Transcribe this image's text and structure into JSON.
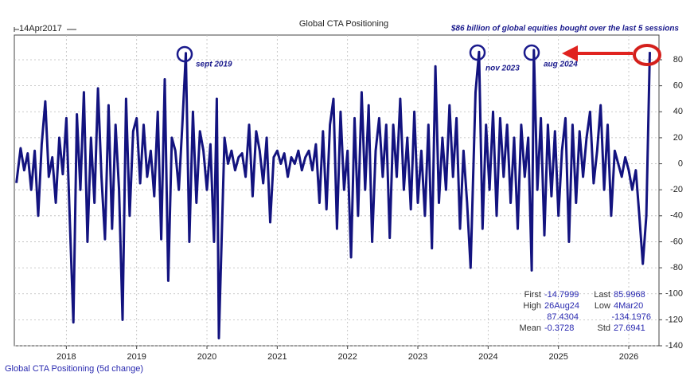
{
  "chart_data": {
    "type": "line",
    "title": "Global CTA Positioning",
    "start_label": "14Apr2017",
    "annotation": "$86 billion of global equities bought over the last 5 sessions",
    "point_labels": [
      "sept 2019",
      "nov 2023",
      "aug 2024"
    ],
    "legend_label": "Global CTA Positioning (5d change)",
    "xlim": [
      2017.26,
      2026.43
    ],
    "xticks": [
      2018,
      2019,
      2020,
      2021,
      2022,
      2023,
      2024,
      2025,
      2026
    ],
    "ylim": [
      -140,
      99
    ],
    "yticks": [
      -140,
      -120,
      -100,
      -80,
      -60,
      -40,
      -20,
      0,
      20,
      40,
      60,
      80
    ],
    "grid": true,
    "series": [
      {
        "name": "Global CTA Positioning",
        "color": "#13137f",
        "x": [
          2017.29,
          2017.35,
          2017.4,
          2017.45,
          2017.5,
          2017.55,
          2017.6,
          2017.65,
          2017.7,
          2017.75,
          2017.8,
          2017.85,
          2017.9,
          2017.95,
          2018.0,
          2018.05,
          2018.1,
          2018.15,
          2018.2,
          2018.25,
          2018.3,
          2018.35,
          2018.4,
          2018.45,
          2018.5,
          2018.55,
          2018.6,
          2018.65,
          2018.7,
          2018.75,
          2018.8,
          2018.85,
          2018.9,
          2018.95,
          2019.0,
          2019.05,
          2019.1,
          2019.15,
          2019.2,
          2019.25,
          2019.3,
          2019.35,
          2019.4,
          2019.45,
          2019.5,
          2019.55,
          2019.6,
          2019.65,
          2019.7,
          2019.75,
          2019.8,
          2019.85,
          2019.9,
          2019.95,
          2020.0,
          2020.05,
          2020.1,
          2020.14,
          2020.17,
          2020.25,
          2020.3,
          2020.35,
          2020.4,
          2020.45,
          2020.5,
          2020.55,
          2020.6,
          2020.65,
          2020.7,
          2020.75,
          2020.8,
          2020.85,
          2020.9,
          2020.95,
          2021.0,
          2021.05,
          2021.1,
          2021.15,
          2021.2,
          2021.25,
          2021.3,
          2021.35,
          2021.4,
          2021.45,
          2021.5,
          2021.55,
          2021.6,
          2021.65,
          2021.7,
          2021.75,
          2021.8,
          2021.85,
          2021.9,
          2021.95,
          2022.0,
          2022.05,
          2022.1,
          2022.15,
          2022.2,
          2022.25,
          2022.3,
          2022.35,
          2022.4,
          2022.45,
          2022.5,
          2022.55,
          2022.6,
          2022.65,
          2022.7,
          2022.75,
          2022.8,
          2022.85,
          2022.9,
          2022.95,
          2023.0,
          2023.05,
          2023.1,
          2023.15,
          2023.2,
          2023.25,
          2023.3,
          2023.35,
          2023.4,
          2023.45,
          2023.5,
          2023.55,
          2023.6,
          2023.65,
          2023.7,
          2023.75,
          2023.82,
          2023.87,
          2023.92,
          2023.97,
          2024.02,
          2024.07,
          2024.12,
          2024.17,
          2024.22,
          2024.27,
          2024.32,
          2024.37,
          2024.42,
          2024.47,
          2024.52,
          2024.57,
          2024.62,
          2024.65,
          2024.7,
          2024.75,
          2024.8,
          2024.85,
          2024.9,
          2024.95,
          2025.0,
          2025.05,
          2025.1,
          2025.15,
          2025.2,
          2025.25,
          2025.3,
          2025.35,
          2025.4,
          2025.45,
          2025.5,
          2025.55,
          2025.6,
          2025.65,
          2025.7,
          2025.75,
          2025.8,
          2025.85,
          2025.9,
          2025.95,
          2026.0,
          2026.05,
          2026.1,
          2026.15,
          2026.2,
          2026.25,
          2026.3
        ],
        "values": [
          -14.7999,
          12,
          -5,
          8,
          -20,
          10,
          -40,
          15,
          48,
          -10,
          5,
          -30,
          20,
          -8,
          35,
          -45,
          -122,
          38,
          -20,
          55,
          -60,
          20,
          -30,
          58,
          -10,
          -58,
          45,
          -50,
          30,
          -20,
          -120,
          50,
          -40,
          25,
          35,
          -15,
          30,
          -10,
          10,
          -25,
          40,
          -58,
          65,
          -90,
          20,
          10,
          -20,
          30,
          85,
          -60,
          40,
          -30,
          25,
          10,
          -20,
          15,
          -60,
          50,
          -134.1976,
          20,
          0,
          10,
          -5,
          5,
          8,
          -10,
          30,
          -25,
          25,
          10,
          -15,
          20,
          -45,
          5,
          10,
          0,
          8,
          -10,
          5,
          0,
          10,
          -5,
          5,
          10,
          -5,
          15,
          -30,
          25,
          -35,
          30,
          50,
          -50,
          40,
          -20,
          10,
          -72,
          35,
          -40,
          55,
          -20,
          45,
          -60,
          10,
          35,
          -10,
          30,
          -57,
          30,
          -10,
          50,
          -20,
          20,
          -35,
          40,
          -30,
          10,
          -40,
          30,
          -65,
          75,
          -30,
          20,
          -20,
          45,
          -10,
          35,
          -50,
          10,
          -30,
          -80,
          55,
          86,
          -50,
          30,
          -20,
          40,
          -40,
          35,
          -10,
          30,
          -30,
          20,
          -50,
          30,
          -10,
          20,
          -82,
          87.4304,
          -20,
          35,
          -55,
          30,
          -25,
          25,
          -40,
          10,
          35,
          -60,
          30,
          -30,
          25,
          -10,
          20,
          40,
          -15,
          10,
          45,
          -20,
          30,
          -40,
          10,
          0,
          -10,
          5,
          -5,
          -20,
          -5,
          -40,
          -77,
          -40,
          85.9968
        ]
      }
    ],
    "stats": {
      "first_label": "First",
      "first": -14.7999,
      "last_label": "Last",
      "last": 85.9968,
      "high_label": "High",
      "high_date": "26Aug24",
      "low_label": "Low",
      "low_date": "4Mar20",
      "high": 87.4304,
      "low": -134.1976,
      "mean_label": "Mean",
      "mean": -0.3728,
      "std_label": "Std",
      "std": 27.6941
    }
  }
}
